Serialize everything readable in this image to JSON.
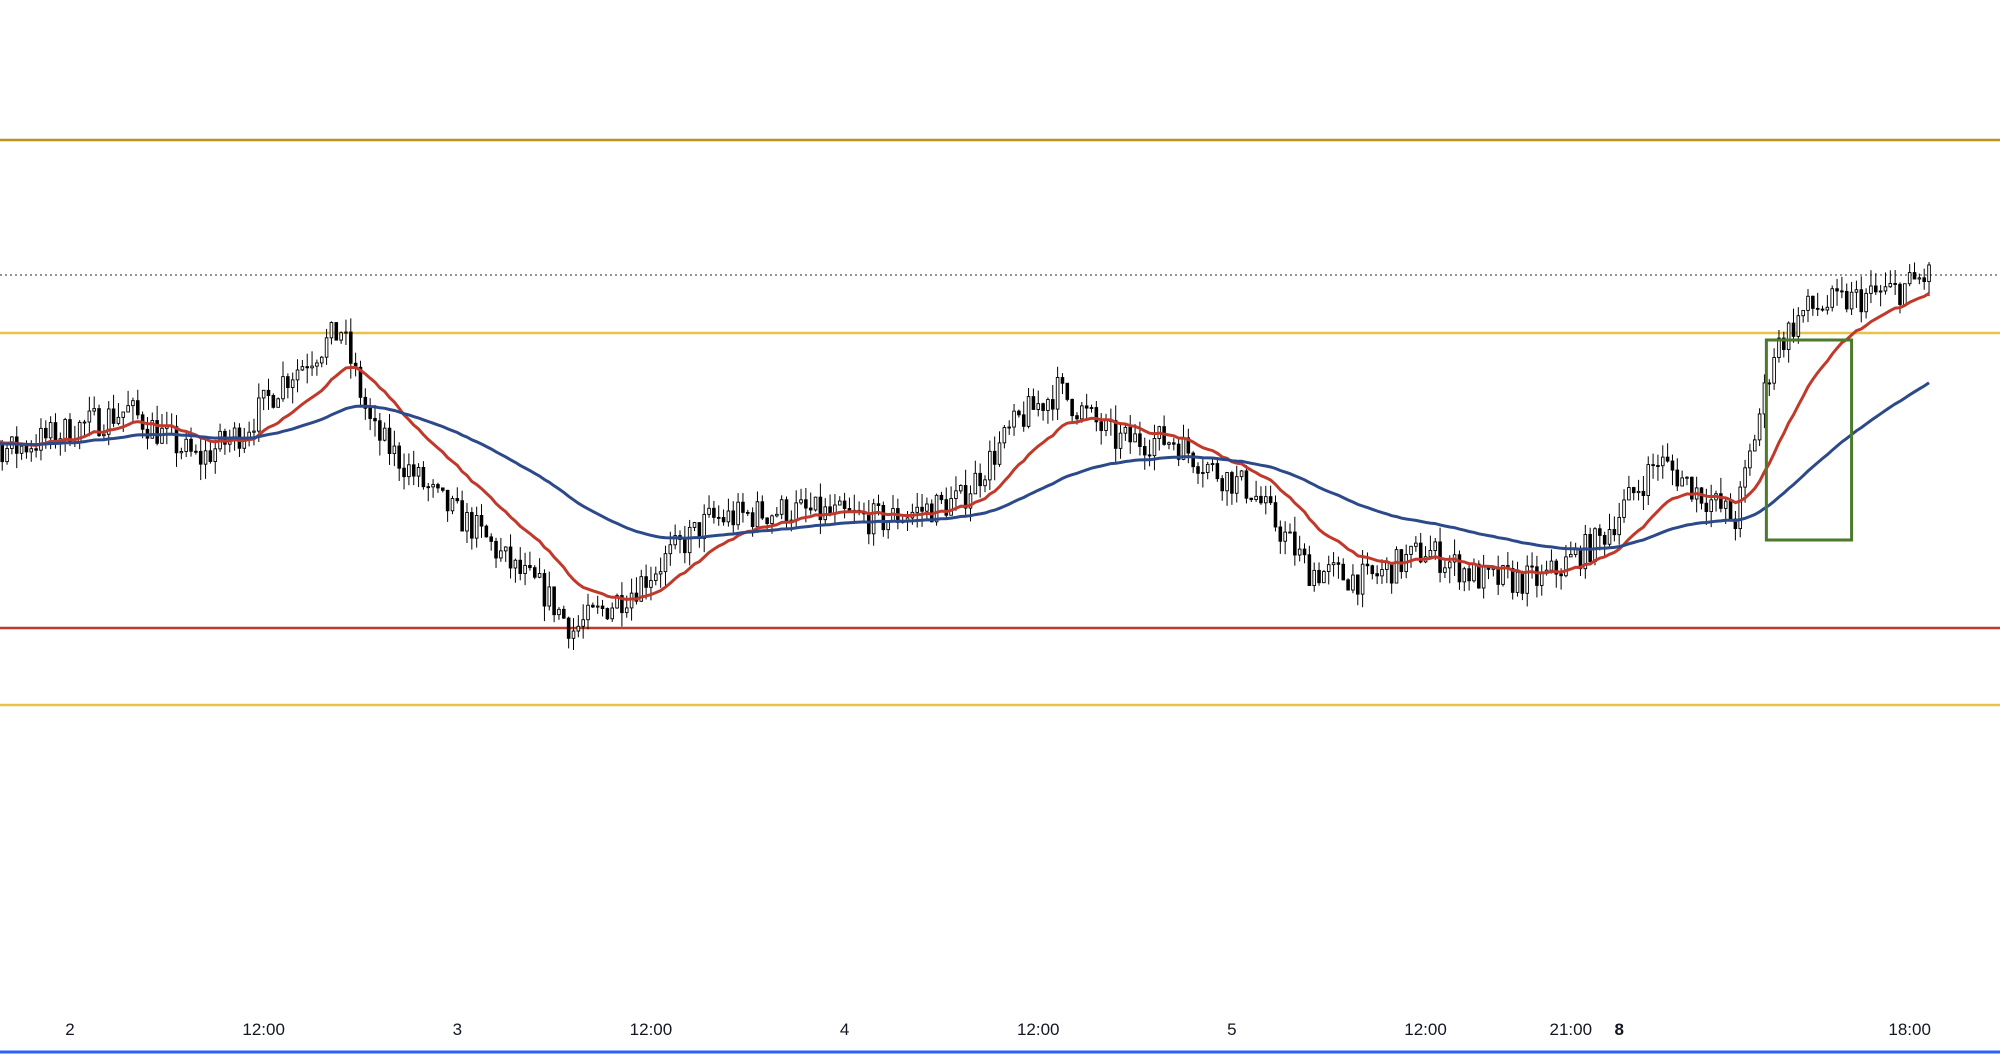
{
  "chart_data": {
    "type": "candlestick",
    "x_axis": {
      "ticks": [
        {
          "label": "2",
          "day": 2,
          "hour": 0
        },
        {
          "label": "12:00",
          "day": 2,
          "hour": 12
        },
        {
          "label": "3",
          "day": 3,
          "hour": 0
        },
        {
          "label": "12:00",
          "day": 3,
          "hour": 12
        },
        {
          "label": "4",
          "day": 4,
          "hour": 0
        },
        {
          "label": "12:00",
          "day": 4,
          "hour": 12
        },
        {
          "label": "5",
          "day": 5,
          "hour": 0
        },
        {
          "label": "12:00",
          "day": 5,
          "hour": 12
        },
        {
          "label": "21:00",
          "day": 5,
          "hour": 21
        },
        {
          "label": "8",
          "day": 8,
          "hour": 0,
          "bold": true
        },
        {
          "label": "18:00",
          "day": 8,
          "hour": 18
        }
      ]
    },
    "y_axis": {
      "range": [
        0,
        100
      ],
      "labels_visible": false
    },
    "grid": false,
    "horizontal_levels": [
      {
        "name": "upper-resistance",
        "value": 86,
        "color": "#b8961c"
      },
      {
        "name": "last-price",
        "value": 72.5,
        "color": "#555555",
        "style": "dotted"
      },
      {
        "name": "resistance",
        "value": 66.7,
        "color": "#e8c24a"
      },
      {
        "name": "support",
        "value": 37.2,
        "color": "#c0392b"
      },
      {
        "name": "lower-support",
        "value": 29.5,
        "color": "#e8c24a"
      }
    ],
    "series": [
      {
        "kind": "candles",
        "color": "#000000",
        "close_path": [
          {
            "t": -0.35,
            "v": 57
          },
          {
            "t": -0.15,
            "v": 55
          },
          {
            "t": 0.15,
            "v": 59
          },
          {
            "t": 0.33,
            "v": 54
          },
          {
            "t": 0.45,
            "v": 57
          },
          {
            "t": 0.55,
            "v": 62
          },
          {
            "t": 0.7,
            "v": 67
          },
          {
            "t": 0.78,
            "v": 57
          },
          {
            "t": 0.95,
            "v": 50
          },
          {
            "t": 1.05,
            "v": 47
          },
          {
            "t": 1.15,
            "v": 43
          },
          {
            "t": 1.22,
            "v": 41
          },
          {
            "t": 1.3,
            "v": 37
          },
          {
            "t": 1.45,
            "v": 41
          },
          {
            "t": 1.65,
            "v": 48
          },
          {
            "t": 1.85,
            "v": 49
          },
          {
            "t": 2.1,
            "v": 48
          },
          {
            "t": 2.3,
            "v": 50
          },
          {
            "t": 2.45,
            "v": 58
          },
          {
            "t": 2.55,
            "v": 61
          },
          {
            "t": 2.7,
            "v": 56
          },
          {
            "t": 2.85,
            "v": 56
          },
          {
            "t": 2.95,
            "v": 53
          },
          {
            "t": 3.05,
            "v": 51
          },
          {
            "t": 3.2,
            "v": 43
          },
          {
            "t": 3.35,
            "v": 42
          },
          {
            "t": 3.5,
            "v": 45
          },
          {
            "t": 3.65,
            "v": 42
          },
          {
            "t": 3.8,
            "v": 42
          },
          {
            "t": 3.95,
            "v": 46
          },
          {
            "t": 4.1,
            "v": 54
          },
          {
            "t": 4.2,
            "v": 51
          },
          {
            "t": 4.3,
            "v": 48
          },
          {
            "t": 4.4,
            "v": 65
          },
          {
            "t": 4.48,
            "v": 69
          },
          {
            "t": 4.6,
            "v": 70
          },
          {
            "t": 4.72,
            "v": 71
          },
          {
            "t": 4.8,
            "v": 72.5
          }
        ]
      },
      {
        "kind": "ma-fast",
        "color": "#c0392b"
      },
      {
        "kind": "ma-slow",
        "color": "#2c4a8a"
      }
    ],
    "annotations": [
      {
        "type": "rectangle",
        "color": "#4a7a2a",
        "t_start": 4.38,
        "t_end": 4.6,
        "v_low": 46,
        "v_high": 66
      }
    ]
  }
}
